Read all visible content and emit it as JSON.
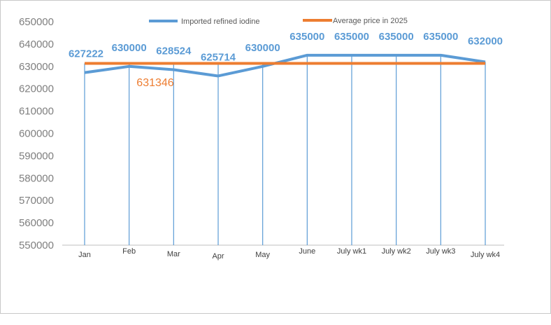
{
  "chart_data": {
    "type": "line",
    "categories": [
      "Jan",
      "Feb",
      "Mar",
      "Apr",
      "May",
      "June",
      "July wk1",
      "July wk2",
      "July wk3",
      "July wk4"
    ],
    "series": [
      {
        "name": "Imported refined iodine",
        "values": [
          627222,
          630000,
          628524,
          625714,
          630000,
          635000,
          635000,
          635000,
          635000,
          632000
        ],
        "color": "#5b9bd5"
      },
      {
        "name": "Average price in 2025",
        "values": [
          631346,
          631346,
          631346,
          631346,
          631346,
          631346,
          631346,
          631346,
          631346,
          631346
        ],
        "color": "#ed7d31"
      }
    ],
    "average_label": "631346",
    "ylim": [
      550000,
      650000
    ],
    "yticks": [
      550000,
      560000,
      570000,
      580000,
      590000,
      600000,
      610000,
      620000,
      630000,
      640000,
      650000
    ],
    "grid": false,
    "drop_lines": true,
    "legend": "top-center"
  }
}
